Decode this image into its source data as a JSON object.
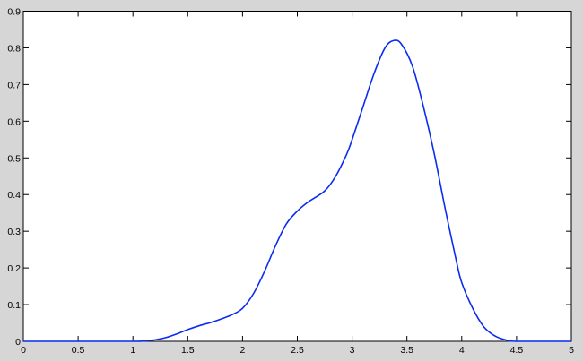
{
  "chart_data": {
    "type": "line",
    "title": "",
    "xlabel": "",
    "ylabel": "",
    "xlim": [
      0,
      5
    ],
    "ylim": [
      0,
      0.9
    ],
    "grid": false,
    "xticks": [
      "0",
      "0.5",
      "1",
      "1.5",
      "2",
      "2.5",
      "3",
      "3.5",
      "4",
      "4.5",
      "5"
    ],
    "yticks": [
      "0",
      "0.1",
      "0.2",
      "0.3",
      "0.4",
      "0.5",
      "0.6",
      "0.7",
      "0.8",
      "0.9"
    ],
    "series": [
      {
        "color": "#0a2cf0",
        "x": [
          0,
          0.5,
          1.0,
          1.1,
          1.2,
          1.3,
          1.4,
          1.5,
          1.6,
          1.75,
          1.9,
          2.0,
          2.1,
          2.2,
          2.3,
          2.4,
          2.5,
          2.6,
          2.75,
          2.85,
          2.95,
          3.0,
          3.1,
          3.2,
          3.3,
          3.38,
          3.45,
          3.55,
          3.65,
          3.75,
          3.85,
          3.95,
          4.0,
          4.1,
          4.2,
          4.3,
          4.4,
          4.5,
          5.0
        ],
        "y": [
          0,
          0,
          0,
          0.001,
          0.004,
          0.01,
          0.02,
          0.032,
          0.042,
          0.055,
          0.072,
          0.09,
          0.13,
          0.19,
          0.26,
          0.32,
          0.355,
          0.38,
          0.41,
          0.45,
          0.51,
          0.55,
          0.64,
          0.73,
          0.8,
          0.82,
          0.81,
          0.75,
          0.64,
          0.51,
          0.36,
          0.22,
          0.16,
          0.09,
          0.04,
          0.015,
          0.004,
          0.0,
          0.0
        ]
      }
    ]
  },
  "colors": {
    "background": "#d6d6d6",
    "plot_area": "#ffffff",
    "line": "#0a2cf0"
  }
}
